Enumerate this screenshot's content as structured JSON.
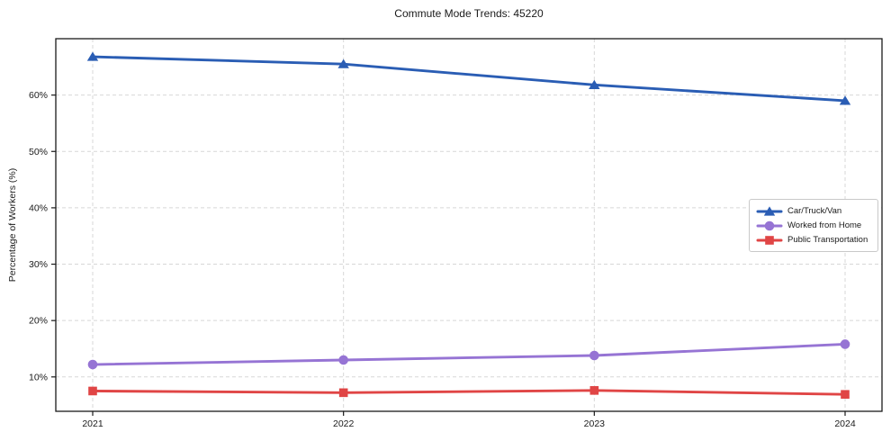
{
  "title": "Commute Mode Trends: 45220",
  "colors": {
    "car_truck_van": "#2a5db4",
    "worked_from_home": "#9674d4",
    "public_transportation": "#e04545",
    "gridline": "#d7d7d7",
    "axis": "#1a1a1a",
    "legend_border": "#c9c9c9",
    "background": "#ffffff"
  },
  "chart_data": {
    "type": "line",
    "title": "Commute Mode Trends: 45220",
    "xlabel": "",
    "ylabel": "Percentage of Workers (%)",
    "categories": [
      "2021",
      "2022",
      "2023",
      "2024"
    ],
    "series": [
      {
        "name": "Car/Truck/Van",
        "color": "#2a5db4",
        "marker": "triangle",
        "values": [
          66.8,
          65.5,
          61.8,
          59.0
        ]
      },
      {
        "name": "Worked from Home",
        "color": "#9674d4",
        "marker": "circle",
        "values": [
          12.2,
          13.0,
          13.8,
          15.8
        ]
      },
      {
        "name": "Public Transportation",
        "color": "#e04545",
        "marker": "square",
        "values": [
          7.5,
          7.2,
          7.6,
          6.9
        ]
      }
    ],
    "yticks": [
      10,
      20,
      30,
      40,
      50,
      60
    ],
    "ytick_labels": [
      "10%",
      "20%",
      "30%",
      "40%",
      "50%",
      "60%"
    ],
    "ylim": [
      3.9,
      70.0
    ],
    "grid": true,
    "grid_style": "dashed",
    "legend_position": "center-right"
  }
}
